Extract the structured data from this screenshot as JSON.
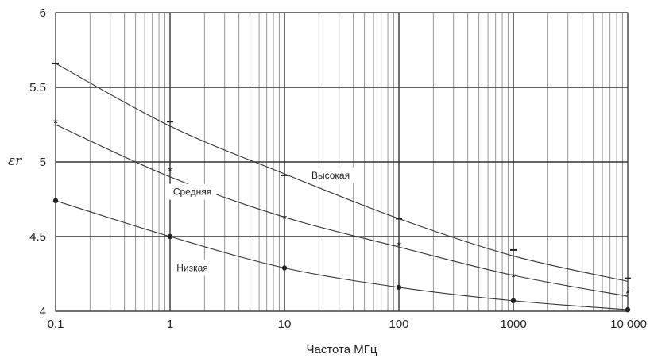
{
  "chart_data": {
    "type": "line",
    "title": "",
    "xlabel": "Частота МГц",
    "ylabel": "εr",
    "xscale": "log",
    "xlim": [
      0.1,
      10000
    ],
    "ylim": [
      4,
      6
    ],
    "x_ticks": [
      0.1,
      1,
      10,
      100,
      1000,
      10000
    ],
    "x_tick_labels": [
      "0.1",
      "1",
      "10",
      "100",
      "1000",
      "10 000"
    ],
    "y_ticks": [
      4,
      4.5,
      5,
      5.5,
      6
    ],
    "y_tick_labels": [
      "4",
      "4.5",
      "5",
      "5.5",
      "6"
    ],
    "grid": true,
    "series": [
      {
        "name": "Высокая",
        "marker": "–",
        "x": [
          0.1,
          1,
          10,
          100,
          1000,
          10000
        ],
        "markers": [
          5.66,
          5.27,
          4.91,
          4.62,
          4.41,
          4.22
        ],
        "curve": [
          5.66,
          5.24,
          4.92,
          4.62,
          4.37,
          4.2
        ]
      },
      {
        "name": "Средняя",
        "marker": "*",
        "x": [
          0.1,
          1,
          10,
          100,
          1000,
          10000
        ],
        "markers": [
          5.27,
          4.95,
          4.63,
          4.45,
          4.24,
          4.13
        ],
        "curve": [
          5.25,
          4.9,
          4.63,
          4.43,
          4.24,
          4.1
        ]
      },
      {
        "name": "Низкая",
        "marker": "●",
        "x": [
          0.1,
          1,
          10,
          100,
          1000,
          10000
        ],
        "markers": [
          4.74,
          4.5,
          4.29,
          4.16,
          4.07,
          4.01
        ],
        "curve": [
          4.74,
          4.5,
          4.29,
          4.16,
          4.07,
          4.01
        ]
      }
    ]
  }
}
